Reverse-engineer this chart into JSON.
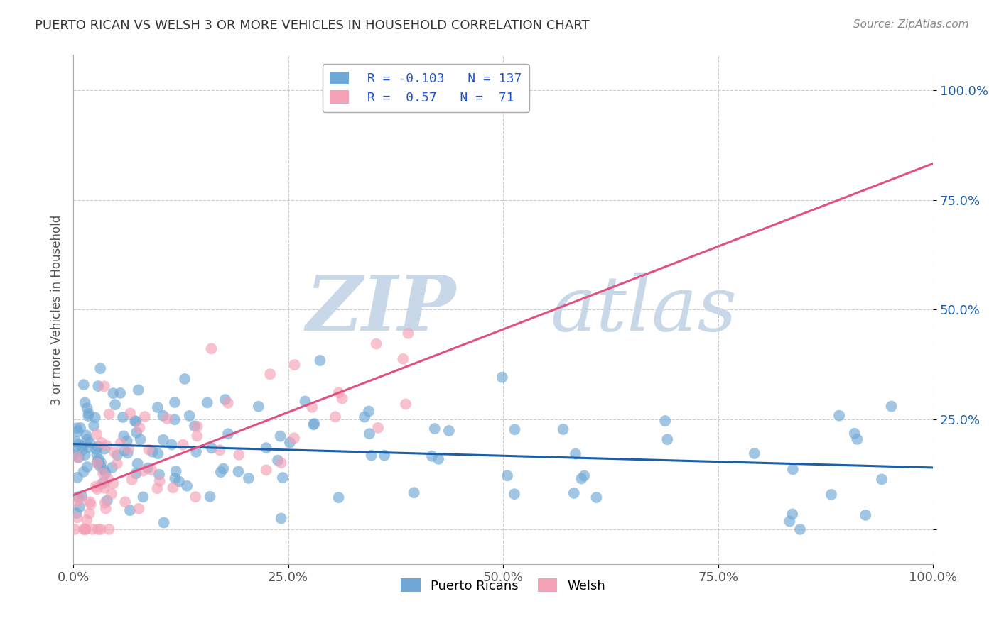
{
  "title": "PUERTO RICAN VS WELSH 3 OR MORE VEHICLES IN HOUSEHOLD CORRELATION CHART",
  "source": "Source: ZipAtlas.com",
  "ylabel": "3 or more Vehicles in Household",
  "xlim": [
    0.0,
    100.0
  ],
  "ylim": [
    -8.0,
    108.0
  ],
  "xticks": [
    0.0,
    25.0,
    50.0,
    75.0,
    100.0
  ],
  "yticks": [
    0.0,
    25.0,
    50.0,
    75.0,
    100.0
  ],
  "xtick_labels": [
    "0.0%",
    "25.0%",
    "50.0%",
    "75.0%",
    "100.0%"
  ],
  "ytick_labels": [
    "",
    "25.0%",
    "50.0%",
    "75.0%",
    "100.0%"
  ],
  "blue_R": -0.103,
  "blue_N": 137,
  "pink_R": 0.57,
  "pink_N": 71,
  "blue_color": "#6fa8d6",
  "pink_color": "#f4a0b5",
  "blue_line_color": "#1a5fa8",
  "pink_line_color": "#e05080",
  "watermark_zip": "ZIP",
  "watermark_atlas": "atlas",
  "watermark_color": "#c8d8e8",
  "legend_label_blue": "Puerto Ricans",
  "legend_label_pink": "Welsh",
  "blue_seed": 42,
  "pink_seed": 7
}
